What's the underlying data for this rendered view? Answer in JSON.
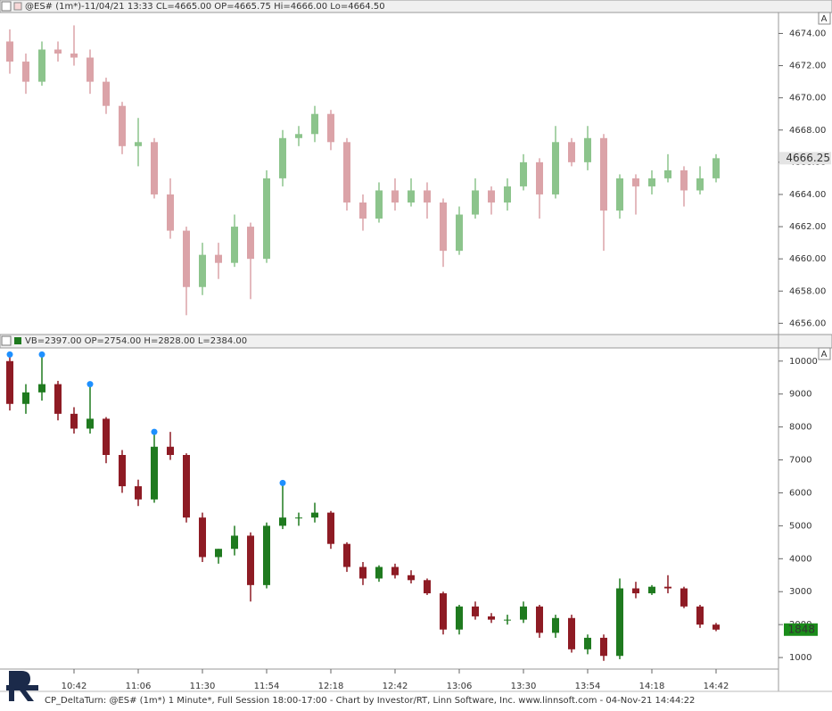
{
  "chart_data": [
    {
      "type": "candlestick",
      "title": "@ES# (1m*)-11/04/21 13:33 CL=4665.00 OP=4665.75 Hi=4666.00 Lo=4664.50",
      "open": [
        4673.5,
        4672.25,
        4671,
        4673,
        4672.75,
        4672.5,
        4671,
        4669.5,
        4667,
        4667.25,
        4664,
        4661.75,
        4658.25,
        4660.25,
        4659.75,
        4662,
        4660,
        4665,
        4667.5,
        4667.75,
        4669,
        4667.25,
        4663.5,
        4662.5,
        4664.25,
        4663.5,
        4664.25,
        4663.5,
        4660.5,
        4662.75,
        4664.25,
        4663.5,
        4664.5,
        4666,
        4664,
        4667.25,
        4666,
        4667.5,
        4663,
        4665,
        4664.5,
        4665,
        4665.5,
        4664.25,
        4665
      ],
      "high": [
        4674.25,
        4672.75,
        4673.5,
        4673.5,
        4674.5,
        4673,
        4671.25,
        4669.75,
        4668.75,
        4667.5,
        4665,
        4662,
        4661,
        4661,
        4662.75,
        4662.25,
        4665.5,
        4668,
        4668.25,
        4669.5,
        4669.25,
        4667.5,
        4664,
        4664.75,
        4665,
        4665,
        4664.75,
        4663.75,
        4663.25,
        4665,
        4664.5,
        4665,
        4666.5,
        4666.25,
        4668.25,
        4667.5,
        4668.25,
        4667.75,
        4665.25,
        4665.25,
        4665.5,
        4666.5,
        4665.75,
        4665.75,
        4666.5
      ],
      "low": [
        4671.5,
        4670.25,
        4670.75,
        4672.25,
        4672,
        4670.25,
        4669,
        4666.5,
        4665.75,
        4663.75,
        4661.25,
        4656.5,
        4657.75,
        4658.75,
        4659.5,
        4657.5,
        4659.75,
        4664.5,
        4667,
        4667.25,
        4666.75,
        4663,
        4661.75,
        4662.25,
        4663,
        4663.25,
        4662.5,
        4659.5,
        4660.25,
        4662.5,
        4662.75,
        4663,
        4664.25,
        4662.5,
        4663.75,
        4665.75,
        4665.5,
        4660.5,
        4662.5,
        4662.75,
        4664,
        4664.75,
        4663.25,
        4664,
        4664.75
      ],
      "close": [
        4672.25,
        4671,
        4673,
        4672.75,
        4672.5,
        4671,
        4669.5,
        4667,
        4667.25,
        4664,
        4661.75,
        4658.25,
        4660.25,
        4659.75,
        4662,
        4660,
        4665,
        4667.5,
        4667.75,
        4669,
        4667.25,
        4663.5,
        4662.5,
        4664.25,
        4663.5,
        4664.25,
        4663.5,
        4660.5,
        4662.75,
        4664.25,
        4663.5,
        4664.5,
        4666,
        4664,
        4667.25,
        4666,
        4667.5,
        4663,
        4665,
        4664.5,
        4665,
        4665.5,
        4664.25,
        4665,
        4666.25
      ],
      "up_color": "#8cc48c",
      "down_color": "#dba3a8",
      "ylim": [
        4655.3,
        4675.3
      ],
      "yticks": [
        {
          "value": 4656,
          "label": "4656.00"
        },
        {
          "value": 4658,
          "label": "4658.00"
        },
        {
          "value": 4660,
          "label": "4660.00"
        },
        {
          "value": 4662,
          "label": "4662.00"
        },
        {
          "value": 4664,
          "label": "4664.00"
        },
        {
          "value": 4666,
          "label": "4666.00"
        },
        {
          "value": 4668,
          "label": "4668.00"
        },
        {
          "value": 4670,
          "label": "4670.00"
        },
        {
          "value": 4672,
          "label": "4672.00"
        },
        {
          "value": 4674,
          "label": "4674.00"
        }
      ],
      "last_value": {
        "value": 4666.25,
        "label": "4666.25"
      },
      "last_color": "#e4e4e4"
    },
    {
      "type": "candlestick",
      "title": "VB=2397.00 OP=2754.00 H=2828.00 L=2384.00",
      "categories": [
        null,
        null,
        null,
        null,
        "10:42",
        null,
        null,
        null,
        "11:06",
        null,
        null,
        null,
        "11:30",
        null,
        null,
        null,
        "11:54",
        null,
        null,
        null,
        "12:18",
        null,
        null,
        null,
        "12:42",
        null,
        null,
        null,
        "13:06",
        null,
        null,
        null,
        "13:30",
        null,
        null,
        null,
        "13:54",
        null,
        null,
        null,
        "14:18",
        null,
        null,
        null,
        "14:42"
      ],
      "open": [
        10000,
        8700,
        9050,
        9300,
        8400,
        7950,
        8250,
        7150,
        6200,
        5800,
        7400,
        7150,
        5250,
        4050,
        4300,
        4700,
        3200,
        5000,
        5250,
        5250,
        5400,
        4450,
        3750,
        3400,
        3750,
        3500,
        3350,
        2950,
        1850,
        2550,
        2250,
        2150,
        2150,
        2550,
        1750,
        2200,
        1250,
        1600,
        1050,
        3100,
        2950,
        3150,
        3100,
        2550,
        2000
      ],
      "high": [
        10200,
        9300,
        10200,
        9400,
        8600,
        9300,
        8300,
        7300,
        6400,
        7850,
        7850,
        7200,
        5400,
        4300,
        5000,
        4800,
        5100,
        6300,
        5400,
        5700,
        5450,
        4500,
        3900,
        3800,
        3850,
        3650,
        3400,
        3000,
        2600,
        2700,
        2350,
        2300,
        2700,
        2600,
        2300,
        2300,
        1700,
        1700,
        3400,
        3300,
        3200,
        3500,
        3150,
        2600,
        2050
      ],
      "low": [
        8500,
        8400,
        8800,
        8200,
        7800,
        7800,
        6900,
        6000,
        5600,
        5700,
        7000,
        5100,
        3900,
        3850,
        4100,
        2700,
        3100,
        4900,
        5000,
        5100,
        4300,
        3600,
        3200,
        3300,
        3400,
        3250,
        2900,
        1700,
        1700,
        2150,
        2050,
        2000,
        2050,
        1600,
        1600,
        1150,
        1100,
        900,
        950,
        2800,
        2900,
        2950,
        2500,
        1900,
        1800
      ],
      "close": [
        8700,
        9050,
        9300,
        8400,
        7950,
        8250,
        7150,
        6200,
        5800,
        7400,
        7150,
        5250,
        4050,
        4300,
        4700,
        3200,
        5000,
        5250,
        5250,
        5400,
        4450,
        3750,
        3400,
        3750,
        3500,
        3350,
        2950,
        1850,
        2550,
        2250,
        2150,
        2150,
        2550,
        1750,
        2200,
        1250,
        1600,
        1050,
        3100,
        2950,
        3150,
        3100,
        2550,
        2000,
        1848
      ],
      "signals": [
        10200,
        null,
        10200,
        null,
        null,
        9300,
        null,
        null,
        null,
        7850,
        null,
        null,
        null,
        null,
        null,
        null,
        null,
        6300,
        null,
        null,
        null,
        null,
        null,
        null,
        null,
        null,
        null,
        null,
        null,
        null,
        null,
        null,
        null,
        null,
        null,
        null,
        null,
        null,
        null,
        null,
        null,
        null,
        null,
        null,
        null
      ],
      "signal_color": "#1e90ff",
      "up_color": "#1f7a1f",
      "down_color": "#8e1b24",
      "ylim": [
        650,
        10400
      ],
      "yticks": [
        1000,
        2000,
        3000,
        4000,
        5000,
        6000,
        7000,
        8000,
        9000,
        10000
      ],
      "last_value": {
        "value": 1848,
        "label": "1848"
      },
      "last_color": "#1a8c1a"
    }
  ],
  "footer": "CP_DeltaTurn: @ES# (1m*) 1 Minute*, Full Session 18:00-17:00 - Chart by Investor/RT, Linn Software, Inc. www.linnsoft.com - 04-Nov-21 14:44:22"
}
